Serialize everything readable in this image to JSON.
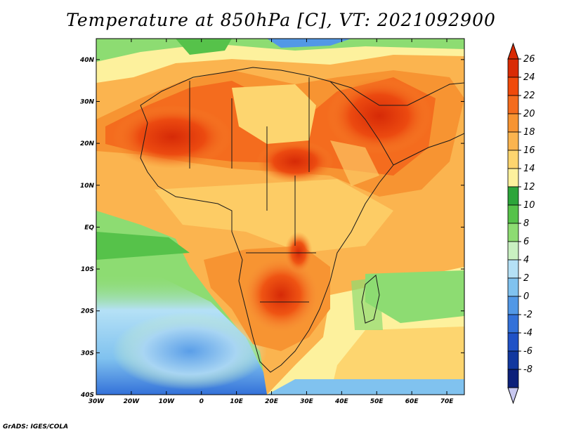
{
  "title": "Temperature at 850hPa [C], VT: 2021092900",
  "credit": "GrADS: IGES/COLA",
  "map": {
    "lon_ticks": [
      "30W",
      "20W",
      "10W",
      "0",
      "10E",
      "20E",
      "30E",
      "40E",
      "50E",
      "60E",
      "70E"
    ],
    "lat_ticks": [
      "40N",
      "30N",
      "20N",
      "10N",
      "EQ",
      "10S",
      "20S",
      "30S",
      "40S"
    ],
    "lon_range": [
      -30,
      75
    ],
    "lat_range": [
      -40,
      45
    ]
  },
  "colorbar": {
    "labels": [
      "26",
      "24",
      "22",
      "20",
      "18",
      "16",
      "14",
      "12",
      "10",
      "8",
      "6",
      "4",
      "2",
      "0",
      "-2",
      "-4",
      "-6",
      "-8"
    ],
    "colors": [
      "#d92b05",
      "#f04a0b",
      "#f46c1e",
      "#f79432",
      "#fbb44f",
      "#fdd56f",
      "#fdf19d",
      "#2ca53a",
      "#56c24a",
      "#8ddc72",
      "#c9f0c1",
      "#b5e1f6",
      "#80c2ef",
      "#5298e6",
      "#3371d9",
      "#2052c6",
      "#12389f",
      "#0c207a"
    ],
    "min_color": "#c8c8f0",
    "max_color": "#d92b05"
  }
}
